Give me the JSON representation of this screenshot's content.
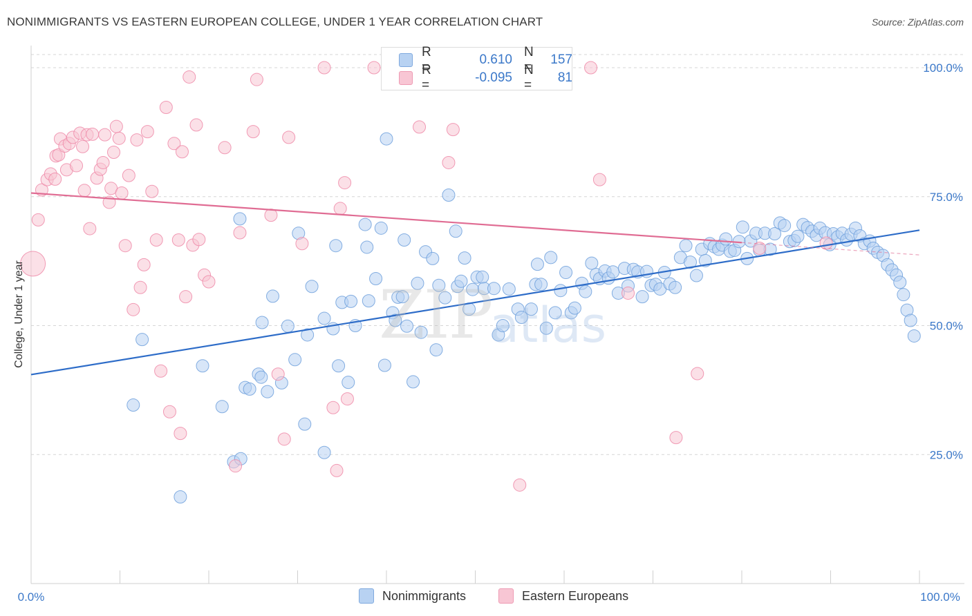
{
  "title": "NONIMMIGRANTS VS EASTERN EUROPEAN COLLEGE, UNDER 1 YEAR CORRELATION CHART",
  "source": "Source: ZipAtlas.com",
  "watermark": {
    "part1": "ZIP",
    "part2": "atlas"
  },
  "legend_top": {
    "rows": [
      {
        "r_label": "R =",
        "r_value": "0.610",
        "n_label": "N =",
        "n_value": "157",
        "color": "#9bbfea"
      },
      {
        "r_label": "R =",
        "r_value": "-0.095",
        "n_label": "N =",
        "n_value": "81",
        "color": "#f4a9bf"
      }
    ]
  },
  "legend_bottom": {
    "items": [
      {
        "label": "Nonimmigrants",
        "color": "#b8d2f2"
      },
      {
        "label": "Eastern Europeans",
        "color": "#f8c6d4"
      }
    ]
  },
  "chart_data": {
    "type": "scatter",
    "title": "NONIMMIGRANTS VS EASTERN EUROPEAN COLLEGE, UNDER 1 YEAR CORRELATION CHART",
    "xlabel": "",
    "ylabel": "College, Under 1 year",
    "xlim": [
      0,
      100
    ],
    "ylim": [
      0,
      100
    ],
    "x_tick_labels": [
      "0.0%",
      "100.0%"
    ],
    "y_tick_labels": [
      "100.0%",
      "75.0%",
      "50.0%",
      "25.0%"
    ],
    "y_ticks": [
      100,
      75,
      50,
      25
    ],
    "grid": true,
    "legend": "top-center and bottom",
    "series": [
      {
        "name": "Nonimmigrants",
        "color": "#6fa0dc",
        "fill": "#b8d2f2",
        "trend": {
          "x": [
            0,
            100
          ],
          "y": [
            40.5,
            68.5
          ],
          "color": "#2d6cc8"
        },
        "points": [
          [
            11.5,
            34.6
          ],
          [
            12.5,
            47.3
          ],
          [
            16.8,
            16.8
          ],
          [
            19.3,
            42.2
          ],
          [
            21.5,
            34.3
          ],
          [
            23.5,
            70.7
          ],
          [
            22.8,
            23.6
          ],
          [
            23.6,
            24.2
          ],
          [
            24.1,
            38.0
          ],
          [
            24.6,
            37.7
          ],
          [
            25.6,
            40.6
          ],
          [
            25.9,
            40.0
          ],
          [
            26.6,
            37.2
          ],
          [
            27.2,
            55.7
          ],
          [
            26.0,
            50.6
          ],
          [
            28.2,
            38.9
          ],
          [
            28.9,
            49.9
          ],
          [
            29.7,
            43.4
          ],
          [
            30.1,
            67.9
          ],
          [
            30.8,
            30.9
          ],
          [
            31.1,
            48.2
          ],
          [
            31.6,
            57.6
          ],
          [
            33.0,
            25.4
          ],
          [
            33.0,
            51.4
          ],
          [
            34.0,
            49.4
          ],
          [
            34.3,
            65.5
          ],
          [
            34.6,
            42.2
          ],
          [
            35.0,
            54.5
          ],
          [
            35.7,
            39.0
          ],
          [
            36.0,
            54.7
          ],
          [
            36.5,
            50.0
          ],
          [
            37.6,
            69.6
          ],
          [
            37.8,
            65.2
          ],
          [
            38.0,
            54.8
          ],
          [
            38.8,
            59.1
          ],
          [
            39.4,
            68.9
          ],
          [
            39.8,
            42.3
          ],
          [
            40.0,
            86.2
          ],
          [
            40.7,
            52.5
          ],
          [
            41.0,
            51.0
          ],
          [
            41.3,
            55.5
          ],
          [
            41.8,
            55.6
          ],
          [
            42.0,
            66.6
          ],
          [
            42.3,
            49.9
          ],
          [
            43.0,
            39.1
          ],
          [
            43.5,
            58.2
          ],
          [
            43.9,
            48.7
          ],
          [
            44.4,
            64.3
          ],
          [
            45.2,
            63.0
          ],
          [
            45.6,
            45.3
          ],
          [
            45.9,
            57.8
          ],
          [
            46.6,
            55.4
          ],
          [
            47.0,
            75.3
          ],
          [
            47.8,
            68.3
          ],
          [
            48.0,
            57.6
          ],
          [
            48.4,
            58.6
          ],
          [
            48.8,
            63.1
          ],
          [
            49.3,
            53.2
          ],
          [
            49.7,
            57.0
          ],
          [
            50.2,
            59.4
          ],
          [
            50.8,
            59.4
          ],
          [
            51.0,
            57.2
          ],
          [
            52.1,
            57.2
          ],
          [
            52.6,
            48.2
          ],
          [
            53.1,
            50.0
          ],
          [
            53.8,
            57.1
          ],
          [
            54.8,
            53.2
          ],
          [
            55.2,
            51.6
          ],
          [
            56.3,
            53.2
          ],
          [
            56.8,
            58.0
          ],
          [
            57.0,
            61.9
          ],
          [
            57.4,
            58.0
          ],
          [
            58.0,
            49.5
          ],
          [
            58.5,
            63.2
          ],
          [
            59.0,
            52.5
          ],
          [
            59.6,
            56.8
          ],
          [
            60.2,
            60.3
          ],
          [
            60.8,
            52.5
          ],
          [
            61.2,
            53.4
          ],
          [
            62.0,
            58.2
          ],
          [
            62.4,
            56.6
          ],
          [
            63.1,
            62.1
          ],
          [
            63.6,
            59.9
          ],
          [
            64.0,
            59.1
          ],
          [
            64.6,
            60.6
          ],
          [
            65.0,
            59.2
          ],
          [
            65.5,
            60.4
          ],
          [
            66.1,
            56.3
          ],
          [
            66.8,
            61.1
          ],
          [
            67.2,
            57.7
          ],
          [
            67.8,
            60.9
          ],
          [
            68.3,
            60.4
          ],
          [
            68.8,
            55.6
          ],
          [
            69.3,
            60.5
          ],
          [
            69.8,
            57.8
          ],
          [
            70.3,
            58.0
          ],
          [
            70.8,
            57.1
          ],
          [
            71.3,
            60.3
          ],
          [
            71.9,
            58.1
          ],
          [
            72.5,
            57.4
          ],
          [
            73.1,
            63.2
          ],
          [
            73.7,
            65.5
          ],
          [
            74.2,
            62.3
          ],
          [
            74.9,
            59.7
          ],
          [
            75.5,
            64.8
          ],
          [
            75.9,
            62.6
          ],
          [
            76.4,
            65.9
          ],
          [
            76.9,
            65.3
          ],
          [
            77.4,
            64.8
          ],
          [
            77.8,
            65.6
          ],
          [
            78.2,
            66.8
          ],
          [
            78.7,
            64.4
          ],
          [
            79.2,
            64.6
          ],
          [
            79.7,
            66.3
          ],
          [
            80.1,
            69.1
          ],
          [
            80.6,
            63.0
          ],
          [
            81.0,
            66.4
          ],
          [
            81.6,
            67.9
          ],
          [
            82.0,
            64.6
          ],
          [
            82.6,
            67.9
          ],
          [
            83.2,
            64.8
          ],
          [
            83.7,
            67.8
          ],
          [
            84.3,
            69.9
          ],
          [
            84.8,
            69.4
          ],
          [
            85.4,
            66.3
          ],
          [
            85.9,
            66.5
          ],
          [
            86.3,
            67.3
          ],
          [
            86.9,
            69.6
          ],
          [
            87.4,
            69.0
          ],
          [
            87.9,
            68.3
          ],
          [
            88.4,
            67.5
          ],
          [
            88.8,
            68.9
          ],
          [
            89.4,
            68.0
          ],
          [
            89.9,
            65.7
          ],
          [
            90.3,
            67.8
          ],
          [
            90.8,
            67.2
          ],
          [
            91.3,
            67.9
          ],
          [
            91.8,
            66.6
          ],
          [
            92.3,
            67.7
          ],
          [
            92.8,
            68.9
          ],
          [
            93.3,
            67.4
          ],
          [
            93.8,
            65.9
          ],
          [
            94.4,
            66.4
          ],
          [
            94.8,
            65.0
          ],
          [
            95.3,
            64.2
          ],
          [
            95.9,
            63.6
          ],
          [
            96.4,
            61.8
          ],
          [
            96.9,
            60.8
          ],
          [
            97.4,
            59.8
          ],
          [
            97.8,
            58.4
          ],
          [
            98.2,
            56.0
          ],
          [
            98.6,
            53.0
          ],
          [
            99.0,
            51.0
          ],
          [
            99.4,
            48.0
          ]
        ]
      },
      {
        "name": "Eastern Europeans",
        "color": "#ee8aa8",
        "fill": "#f8c6d4",
        "trend": {
          "x": [
            0,
            80
          ],
          "y": [
            75.7,
            66.1
          ],
          "color": "#e06c93"
        },
        "trend_dashed": {
          "x": [
            80,
            100
          ],
          "y": [
            66.1,
            63.7
          ]
        },
        "points": [
          [
            0.2,
            62.0
          ],
          [
            0.8,
            70.5
          ],
          [
            1.2,
            76.3
          ],
          [
            1.8,
            78.3
          ],
          [
            2.2,
            79.4
          ],
          [
            2.7,
            78.4
          ],
          [
            2.8,
            82.9
          ],
          [
            3.3,
            86.2
          ],
          [
            3.1,
            83.1
          ],
          [
            3.8,
            84.8
          ],
          [
            4.0,
            80.2
          ],
          [
            4.3,
            85.3
          ],
          [
            4.7,
            86.5
          ],
          [
            5.1,
            81.0
          ],
          [
            5.5,
            87.3
          ],
          [
            5.8,
            84.7
          ],
          [
            6.0,
            76.2
          ],
          [
            6.3,
            87.0
          ],
          [
            6.6,
            68.8
          ],
          [
            6.9,
            87.1
          ],
          [
            7.4,
            78.6
          ],
          [
            7.8,
            80.3
          ],
          [
            8.1,
            81.6
          ],
          [
            8.3,
            87.0
          ],
          [
            8.8,
            73.9
          ],
          [
            9.0,
            76.6
          ],
          [
            9.3,
            83.6
          ],
          [
            9.6,
            88.6
          ],
          [
            9.9,
            86.3
          ],
          [
            10.2,
            75.7
          ],
          [
            10.6,
            65.5
          ],
          [
            11.0,
            79.1
          ],
          [
            11.5,
            53.1
          ],
          [
            11.9,
            86.0
          ],
          [
            12.3,
            57.4
          ],
          [
            12.7,
            61.8
          ],
          [
            13.1,
            87.6
          ],
          [
            13.6,
            76.0
          ],
          [
            14.1,
            66.6
          ],
          [
            14.6,
            41.2
          ],
          [
            15.2,
            92.3
          ],
          [
            15.6,
            33.3
          ],
          [
            16.1,
            85.3
          ],
          [
            16.6,
            66.6
          ],
          [
            17.0,
            83.7
          ],
          [
            16.8,
            29.1
          ],
          [
            17.4,
            55.6
          ],
          [
            17.8,
            98.2
          ],
          [
            18.2,
            65.6
          ],
          [
            18.6,
            88.9
          ],
          [
            18.9,
            66.7
          ],
          [
            19.5,
            59.8
          ],
          [
            20.0,
            58.5
          ],
          [
            21.8,
            84.5
          ],
          [
            23.0,
            22.8
          ],
          [
            23.5,
            68.0
          ],
          [
            25.0,
            87.6
          ],
          [
            25.4,
            97.7
          ],
          [
            27.0,
            71.4
          ],
          [
            27.8,
            40.6
          ],
          [
            28.5,
            28.0
          ],
          [
            29.0,
            86.5
          ],
          [
            30.5,
            65.9
          ],
          [
            33.0,
            100.0
          ],
          [
            34.0,
            34.1
          ],
          [
            34.4,
            21.9
          ],
          [
            34.8,
            72.7
          ],
          [
            35.3,
            77.7
          ],
          [
            35.6,
            35.8
          ],
          [
            38.6,
            100.0
          ],
          [
            43.7,
            88.5
          ],
          [
            47.0,
            81.6
          ],
          [
            47.5,
            88.0
          ],
          [
            55.0,
            19.1
          ],
          [
            63.0,
            100.0
          ],
          [
            64.0,
            78.3
          ],
          [
            67.2,
            56.3
          ],
          [
            72.6,
            28.3
          ],
          [
            75.0,
            40.7
          ],
          [
            82.0,
            65.0
          ],
          [
            89.5,
            66.0
          ]
        ]
      }
    ]
  }
}
